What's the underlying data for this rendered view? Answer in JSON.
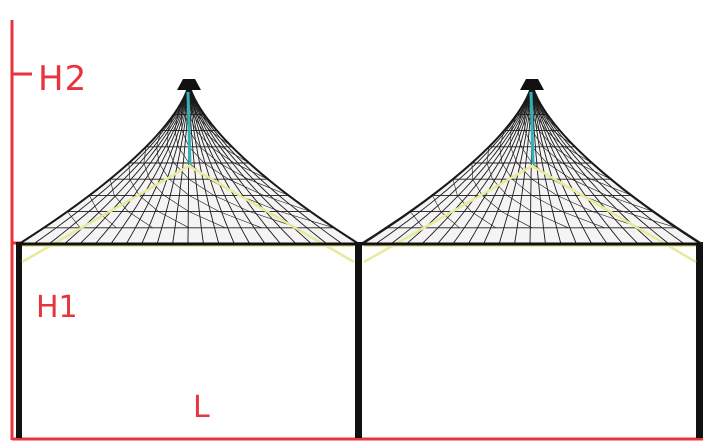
{
  "labels": {
    "h2": "H2",
    "h1": "H1",
    "l": "L"
  },
  "colors": {
    "dimension": "#e8343c",
    "structure": "#111111",
    "mesh": "#1a1a1a",
    "ridge": "#e6ea9a",
    "mast": "#2fb3b8"
  },
  "structure": {
    "bays": 2,
    "membranes": 2
  }
}
